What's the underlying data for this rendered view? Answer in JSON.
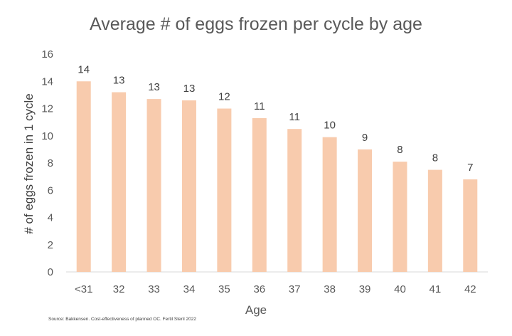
{
  "chart_data": {
    "type": "bar",
    "title": "Average # of eggs frozen per cycle by age",
    "xlabel": "Age",
    "ylabel": "# of eggs frozen in 1 cycle",
    "categories": [
      "<31",
      "32",
      "33",
      "34",
      "35",
      "36",
      "37",
      "38",
      "39",
      "40",
      "41",
      "42"
    ],
    "values": [
      14,
      13.2,
      12.7,
      12.6,
      12,
      11.3,
      10.5,
      9.9,
      9,
      8.1,
      7.5,
      6.8
    ],
    "data_labels": [
      "14",
      "13",
      "13",
      "13",
      "12",
      "11",
      "11",
      "10",
      "9",
      "8",
      "8",
      "7"
    ],
    "y_ticks": [
      "0",
      "2",
      "4",
      "6",
      "8",
      "10",
      "12",
      "14",
      "16"
    ],
    "ylim": [
      0,
      16
    ],
    "grid": false,
    "legend": "none",
    "bar_color": "#f8cbad",
    "axis_color": "#d9d9d9"
  },
  "source": "Source: Bakkensen. Cost-effectiveness of planned OC. Fertil Steril 2022"
}
